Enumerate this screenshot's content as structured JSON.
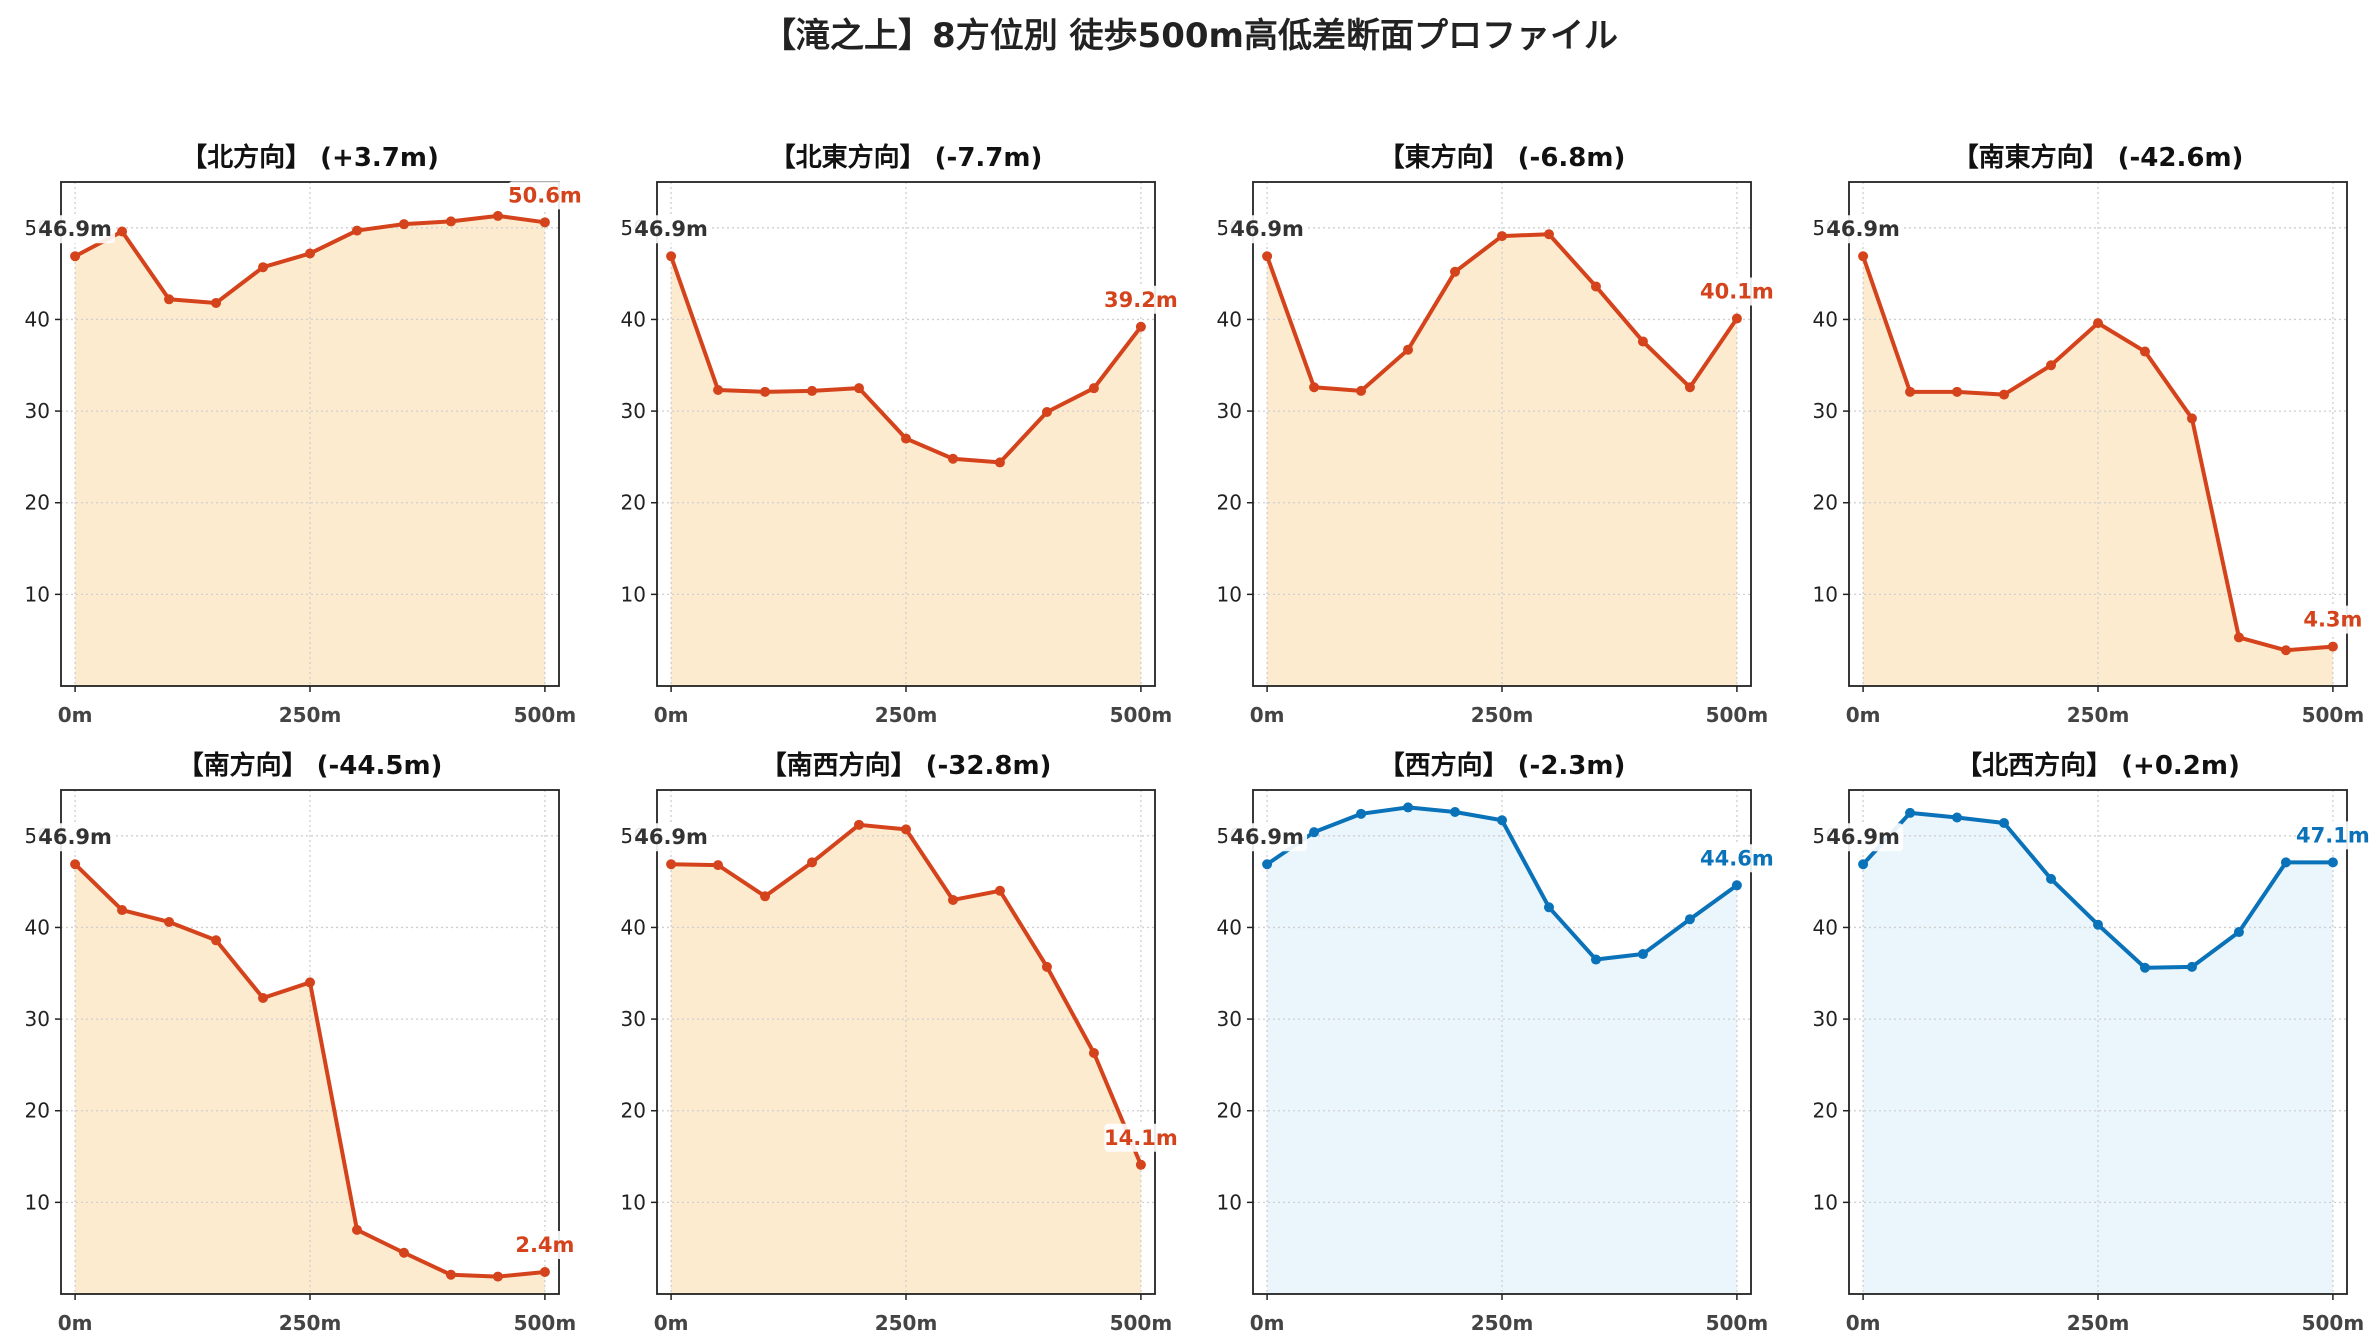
{
  "figure_title": "【滝之上】8方位別 徒歩500m高低差断面プロファイル",
  "colors": {
    "descent_line": "#d4431b",
    "descent_fill": "#fdebd0",
    "ascent_line": "#0a72b8",
    "ascent_fill": "#eaf6fc",
    "start_label": "#333333",
    "axes": "#222222",
    "grid": "#cfcfcf"
  },
  "chart_data": [
    {
      "type": "area",
      "title": "【北方向】 (+3.7m)",
      "x": [
        0,
        50,
        100,
        150,
        200,
        250,
        300,
        350,
        400,
        450,
        500
      ],
      "values": [
        46.9,
        49.6,
        42.2,
        41.8,
        45.7,
        47.2,
        49.7,
        50.4,
        50.7,
        51.3,
        50.6
      ],
      "start_label": "46.9m",
      "end_label": "50.6m",
      "theme": "descent",
      "xticks": [
        0,
        250,
        500
      ],
      "xtick_labels": [
        "0m",
        "250m",
        "500m"
      ],
      "yticks": [
        10,
        20,
        30,
        40,
        50
      ],
      "ytick_labels": [
        "10",
        "20",
        "30",
        "40",
        "50"
      ],
      "xlim": [
        -15,
        515
      ],
      "ylim": [
        0,
        55
      ],
      "grid": true
    },
    {
      "type": "area",
      "title": "【北東方向】 (-7.7m)",
      "x": [
        0,
        50,
        100,
        150,
        200,
        250,
        300,
        350,
        400,
        450,
        500
      ],
      "values": [
        46.9,
        32.3,
        32.1,
        32.2,
        32.5,
        27.0,
        24.8,
        24.4,
        29.9,
        32.5,
        39.2
      ],
      "start_label": "46.9m",
      "end_label": "39.2m",
      "theme": "descent",
      "xticks": [
        0,
        250,
        500
      ],
      "xtick_labels": [
        "0m",
        "250m",
        "500m"
      ],
      "yticks": [
        10,
        20,
        30,
        40,
        50
      ],
      "ytick_labels": [
        "10",
        "20",
        "30",
        "40",
        "50"
      ],
      "xlim": [
        -15,
        515
      ],
      "ylim": [
        0,
        55
      ],
      "grid": true
    },
    {
      "type": "area",
      "title": "【東方向】 (-6.8m)",
      "x": [
        0,
        50,
        100,
        150,
        200,
        250,
        300,
        350,
        400,
        450,
        500
      ],
      "values": [
        46.9,
        32.6,
        32.2,
        36.7,
        45.2,
        49.1,
        49.3,
        43.6,
        37.6,
        32.6,
        40.1
      ],
      "start_label": "46.9m",
      "end_label": "40.1m",
      "theme": "descent",
      "xticks": [
        0,
        250,
        500
      ],
      "xtick_labels": [
        "0m",
        "250m",
        "500m"
      ],
      "yticks": [
        10,
        20,
        30,
        40,
        50
      ],
      "ytick_labels": [
        "10",
        "20",
        "30",
        "40",
        "50"
      ],
      "xlim": [
        -15,
        515
      ],
      "ylim": [
        0,
        55
      ],
      "grid": true
    },
    {
      "type": "area",
      "title": "【南東方向】 (-42.6m)",
      "x": [
        0,
        50,
        100,
        150,
        200,
        250,
        300,
        350,
        400,
        450,
        500
      ],
      "values": [
        46.9,
        32.1,
        32.1,
        31.8,
        35.0,
        39.6,
        36.5,
        29.2,
        5.3,
        3.9,
        4.3
      ],
      "start_label": "46.9m",
      "end_label": "4.3m",
      "theme": "descent",
      "xticks": [
        0,
        250,
        500
      ],
      "xtick_labels": [
        "0m",
        "250m",
        "500m"
      ],
      "yticks": [
        10,
        20,
        30,
        40,
        50
      ],
      "ytick_labels": [
        "10",
        "20",
        "30",
        "40",
        "50"
      ],
      "xlim": [
        -15,
        515
      ],
      "ylim": [
        0,
        55
      ],
      "grid": true
    },
    {
      "type": "area",
      "title": "【南方向】 (-44.5m)",
      "x": [
        0,
        50,
        100,
        150,
        200,
        250,
        300,
        350,
        400,
        450,
        500
      ],
      "values": [
        46.9,
        41.9,
        40.6,
        38.6,
        32.3,
        34.0,
        7.0,
        4.5,
        2.1,
        1.9,
        2.4
      ],
      "start_label": "46.9m",
      "end_label": "2.4m",
      "theme": "descent",
      "xticks": [
        0,
        250,
        500
      ],
      "xtick_labels": [
        "0m",
        "250m",
        "500m"
      ],
      "yticks": [
        10,
        20,
        30,
        40,
        50
      ],
      "ytick_labels": [
        "10",
        "20",
        "30",
        "40",
        "50"
      ],
      "xlim": [
        -15,
        515
      ],
      "ylim": [
        0,
        55
      ],
      "grid": true
    },
    {
      "type": "area",
      "title": "【南西方向】 (-32.8m)",
      "x": [
        0,
        50,
        100,
        150,
        200,
        250,
        300,
        350,
        400,
        450,
        500
      ],
      "values": [
        46.9,
        46.8,
        43.4,
        47.1,
        51.2,
        50.7,
        43.0,
        44.0,
        35.7,
        26.3,
        14.1
      ],
      "start_label": "46.9m",
      "end_label": "14.1m",
      "theme": "descent",
      "xticks": [
        0,
        250,
        500
      ],
      "xtick_labels": [
        "0m",
        "250m",
        "500m"
      ],
      "yticks": [
        10,
        20,
        30,
        40,
        50
      ],
      "ytick_labels": [
        "10",
        "20",
        "30",
        "40",
        "50"
      ],
      "xlim": [
        -15,
        515
      ],
      "ylim": [
        0,
        55
      ],
      "grid": true
    },
    {
      "type": "area",
      "title": "【西方向】 (-2.3m)",
      "x": [
        0,
        50,
        100,
        150,
        200,
        250,
        300,
        350,
        400,
        450,
        500
      ],
      "values": [
        46.9,
        50.4,
        52.4,
        53.1,
        52.6,
        51.7,
        42.2,
        36.5,
        37.1,
        40.9,
        44.6
      ],
      "start_label": "46.9m",
      "end_label": "44.6m",
      "theme": "ascent",
      "xticks": [
        0,
        250,
        500
      ],
      "xtick_labels": [
        "0m",
        "250m",
        "500m"
      ],
      "yticks": [
        10,
        20,
        30,
        40,
        50
      ],
      "ytick_labels": [
        "10",
        "20",
        "30",
        "40",
        "50"
      ],
      "xlim": [
        -15,
        515
      ],
      "ylim": [
        0,
        55
      ],
      "grid": true
    },
    {
      "type": "area",
      "title": "【北西方向】 (+0.2m)",
      "x": [
        0,
        50,
        100,
        150,
        200,
        250,
        300,
        350,
        400,
        450,
        500
      ],
      "values": [
        46.9,
        52.5,
        52.0,
        51.4,
        45.3,
        40.3,
        35.6,
        35.7,
        39.5,
        47.1,
        47.1
      ],
      "start_label": "46.9m",
      "end_label": "47.1m",
      "theme": "ascent",
      "xticks": [
        0,
        250,
        500
      ],
      "xtick_labels": [
        "0m",
        "250m",
        "500m"
      ],
      "yticks": [
        10,
        20,
        30,
        40,
        50
      ],
      "ytick_labels": [
        "10",
        "20",
        "30",
        "40",
        "50"
      ],
      "xlim": [
        -15,
        515
      ],
      "ylim": [
        0,
        55
      ],
      "grid": true
    }
  ]
}
